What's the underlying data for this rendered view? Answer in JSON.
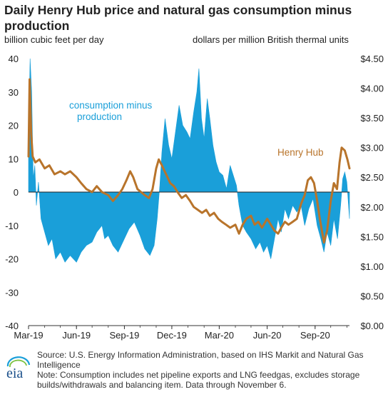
{
  "title": "Daily Henry Hub price and natural gas consumption minus production",
  "left_axis_unit": "billion cubic feet per day",
  "right_axis_unit": "dollars per million British thermal units",
  "footer": {
    "source": "Source: U.S. Energy Information Administration, based on IHS Markit and Natural Gas Intelligence",
    "note": "Note: Consumption includes net pipeline exports and LNG feedgas, excludes storage builds/withdrawals and balancing item. Data through November 6.",
    "logo_text": "eia"
  },
  "colors": {
    "area": "#1a9fd9",
    "line": "#b8742b",
    "axis": "#333333",
    "text": "#222222"
  },
  "chart_data": {
    "type": "area",
    "title": "Daily Henry Hub price and natural gas consumption minus production",
    "x_ticks": [
      "Mar-19",
      "Jun-19",
      "Sep-19",
      "Dec-19",
      "Mar-20",
      "Jun-20",
      "Sep-20"
    ],
    "x_range": [
      "2019-03-01",
      "2020-11-06"
    ],
    "y_left": {
      "label": "billion cubic feet per day",
      "range": [
        -40,
        40
      ],
      "ticks": [
        "40",
        "30",
        "20",
        "10",
        "0",
        "-10",
        "-20",
        "-30",
        "-40"
      ]
    },
    "y_right": {
      "label": "dollars per million British thermal units",
      "range": [
        0,
        4.5
      ],
      "ticks": [
        "$4.50",
        "$4.00",
        "$3.50",
        "$3.00",
        "$2.50",
        "$2.00",
        "$1.50",
        "$1.00",
        "$0.50",
        "$0.00"
      ]
    },
    "grid": false,
    "series": [
      {
        "name": "consumption minus production",
        "axis": "left",
        "style": "area",
        "points": [
          [
            "2019-03-01",
            16
          ],
          [
            "2019-03-04",
            40
          ],
          [
            "2019-03-07",
            30
          ],
          [
            "2019-03-10",
            4
          ],
          [
            "2019-03-13",
            8
          ],
          [
            "2019-03-16",
            -4
          ],
          [
            "2019-03-20",
            3
          ],
          [
            "2019-03-25",
            -8
          ],
          [
            "2019-04-01",
            -12
          ],
          [
            "2019-04-08",
            -16
          ],
          [
            "2019-04-15",
            -14
          ],
          [
            "2019-04-22",
            -20
          ],
          [
            "2019-05-01",
            -18
          ],
          [
            "2019-05-10",
            -21
          ],
          [
            "2019-05-20",
            -19
          ],
          [
            "2019-06-01",
            -21
          ],
          [
            "2019-06-10",
            -18
          ],
          [
            "2019-06-20",
            -16
          ],
          [
            "2019-07-01",
            -15
          ],
          [
            "2019-07-10",
            -12
          ],
          [
            "2019-07-20",
            -10
          ],
          [
            "2019-07-25",
            -14
          ],
          [
            "2019-08-01",
            -13
          ],
          [
            "2019-08-10",
            -16
          ],
          [
            "2019-08-20",
            -18
          ],
          [
            "2019-09-01",
            -14
          ],
          [
            "2019-09-10",
            -11
          ],
          [
            "2019-09-20",
            -9
          ],
          [
            "2019-10-01",
            -13
          ],
          [
            "2019-10-10",
            -17
          ],
          [
            "2019-10-20",
            -19
          ],
          [
            "2019-10-28",
            -16
          ],
          [
            "2019-11-03",
            -8
          ],
          [
            "2019-11-08",
            2
          ],
          [
            "2019-11-12",
            12
          ],
          [
            "2019-11-18",
            22
          ],
          [
            "2019-11-25",
            14
          ],
          [
            "2019-12-01",
            10
          ],
          [
            "2019-12-08",
            18
          ],
          [
            "2019-12-15",
            26
          ],
          [
            "2019-12-22",
            20
          ],
          [
            "2019-12-30",
            18
          ],
          [
            "2020-01-05",
            16
          ],
          [
            "2020-01-12",
            24
          ],
          [
            "2020-01-18",
            30
          ],
          [
            "2020-01-22",
            37
          ],
          [
            "2020-01-27",
            22
          ],
          [
            "2020-02-01",
            16
          ],
          [
            "2020-02-07",
            28
          ],
          [
            "2020-02-12",
            22
          ],
          [
            "2020-02-18",
            14
          ],
          [
            "2020-02-24",
            9
          ],
          [
            "2020-03-01",
            6
          ],
          [
            "2020-03-08",
            5
          ],
          [
            "2020-03-15",
            1
          ],
          [
            "2020-03-22",
            8
          ],
          [
            "2020-03-28",
            5
          ],
          [
            "2020-04-03",
            2
          ],
          [
            "2020-04-08",
            -4
          ],
          [
            "2020-04-15",
            -10
          ],
          [
            "2020-04-22",
            -12
          ],
          [
            "2020-05-01",
            -14
          ],
          [
            "2020-05-10",
            -17
          ],
          [
            "2020-05-18",
            -15
          ],
          [
            "2020-05-25",
            -18
          ],
          [
            "2020-06-01",
            -16
          ],
          [
            "2020-06-08",
            -20
          ],
          [
            "2020-06-15",
            -14
          ],
          [
            "2020-06-22",
            -8
          ],
          [
            "2020-06-28",
            -12
          ],
          [
            "2020-07-05",
            -5
          ],
          [
            "2020-07-12",
            -8
          ],
          [
            "2020-07-20",
            -4
          ],
          [
            "2020-07-28",
            -6
          ],
          [
            "2020-08-05",
            -4
          ],
          [
            "2020-08-12",
            -10
          ],
          [
            "2020-08-20",
            -5
          ],
          [
            "2020-08-28",
            -2
          ],
          [
            "2020-09-05",
            -10
          ],
          [
            "2020-09-12",
            -14
          ],
          [
            "2020-09-18",
            -18
          ],
          [
            "2020-09-24",
            -12
          ],
          [
            "2020-10-01",
            -16
          ],
          [
            "2020-10-07",
            -8
          ],
          [
            "2020-10-14",
            -14
          ],
          [
            "2020-10-20",
            -4
          ],
          [
            "2020-10-24",
            4
          ],
          [
            "2020-10-28",
            6
          ],
          [
            "2020-11-01",
            3
          ],
          [
            "2020-11-06",
            -8
          ]
        ]
      },
      {
        "name": "Henry Hub",
        "axis": "right",
        "style": "line",
        "points": [
          [
            "2019-03-01",
            2.85
          ],
          [
            "2019-03-03",
            4.15
          ],
          [
            "2019-03-06",
            3.25
          ],
          [
            "2019-03-09",
            2.85
          ],
          [
            "2019-03-14",
            2.75
          ],
          [
            "2019-03-22",
            2.8
          ],
          [
            "2019-04-01",
            2.65
          ],
          [
            "2019-04-10",
            2.7
          ],
          [
            "2019-04-20",
            2.55
          ],
          [
            "2019-05-01",
            2.6
          ],
          [
            "2019-05-10",
            2.55
          ],
          [
            "2019-05-20",
            2.6
          ],
          [
            "2019-06-01",
            2.5
          ],
          [
            "2019-06-10",
            2.4
          ],
          [
            "2019-06-20",
            2.3
          ],
          [
            "2019-07-01",
            2.25
          ],
          [
            "2019-07-10",
            2.35
          ],
          [
            "2019-07-20",
            2.25
          ],
          [
            "2019-08-01",
            2.2
          ],
          [
            "2019-08-10",
            2.1
          ],
          [
            "2019-08-20",
            2.2
          ],
          [
            "2019-08-28",
            2.3
          ],
          [
            "2019-09-05",
            2.45
          ],
          [
            "2019-09-12",
            2.6
          ],
          [
            "2019-09-18",
            2.5
          ],
          [
            "2019-09-26",
            2.3
          ],
          [
            "2019-10-03",
            2.25
          ],
          [
            "2019-10-10",
            2.2
          ],
          [
            "2019-10-18",
            2.15
          ],
          [
            "2019-10-25",
            2.3
          ],
          [
            "2019-11-01",
            2.65
          ],
          [
            "2019-11-06",
            2.8
          ],
          [
            "2019-11-12",
            2.7
          ],
          [
            "2019-11-20",
            2.55
          ],
          [
            "2019-11-28",
            2.4
          ],
          [
            "2019-12-05",
            2.35
          ],
          [
            "2019-12-12",
            2.25
          ],
          [
            "2019-12-20",
            2.15
          ],
          [
            "2019-12-28",
            2.2
          ],
          [
            "2020-01-05",
            2.1
          ],
          [
            "2020-01-12",
            2.0
          ],
          [
            "2020-01-20",
            1.95
          ],
          [
            "2020-01-28",
            1.9
          ],
          [
            "2020-02-05",
            1.95
          ],
          [
            "2020-02-12",
            1.85
          ],
          [
            "2020-02-20",
            1.9
          ],
          [
            "2020-02-28",
            1.8
          ],
          [
            "2020-03-06",
            1.75
          ],
          [
            "2020-03-14",
            1.7
          ],
          [
            "2020-03-22",
            1.65
          ],
          [
            "2020-04-01",
            1.7
          ],
          [
            "2020-04-08",
            1.55
          ],
          [
            "2020-04-15",
            1.7
          ],
          [
            "2020-04-22",
            1.8
          ],
          [
            "2020-05-01",
            1.85
          ],
          [
            "2020-05-08",
            1.7
          ],
          [
            "2020-05-15",
            1.75
          ],
          [
            "2020-05-22",
            1.65
          ],
          [
            "2020-06-01",
            1.8
          ],
          [
            "2020-06-08",
            1.7
          ],
          [
            "2020-06-15",
            1.6
          ],
          [
            "2020-06-22",
            1.55
          ],
          [
            "2020-06-28",
            1.65
          ],
          [
            "2020-07-05",
            1.75
          ],
          [
            "2020-07-12",
            1.7
          ],
          [
            "2020-07-20",
            1.75
          ],
          [
            "2020-07-28",
            1.8
          ],
          [
            "2020-08-05",
            2.05
          ],
          [
            "2020-08-12",
            2.2
          ],
          [
            "2020-08-18",
            2.45
          ],
          [
            "2020-08-24",
            2.5
          ],
          [
            "2020-08-30",
            2.4
          ],
          [
            "2020-09-05",
            2.1
          ],
          [
            "2020-09-10",
            1.8
          ],
          [
            "2020-09-14",
            1.6
          ],
          [
            "2020-09-18",
            1.4
          ],
          [
            "2020-09-24",
            1.6
          ],
          [
            "2020-10-01",
            2.1
          ],
          [
            "2020-10-07",
            2.4
          ],
          [
            "2020-10-13",
            2.3
          ],
          [
            "2020-10-18",
            2.75
          ],
          [
            "2020-10-22",
            3.0
          ],
          [
            "2020-10-28",
            2.95
          ],
          [
            "2020-11-02",
            2.8
          ],
          [
            "2020-11-06",
            2.65
          ]
        ]
      }
    ],
    "annotations": [
      {
        "text": "consumption minus production",
        "series": "consumption minus production"
      },
      {
        "text": "Henry Hub",
        "series": "Henry Hub"
      }
    ]
  }
}
